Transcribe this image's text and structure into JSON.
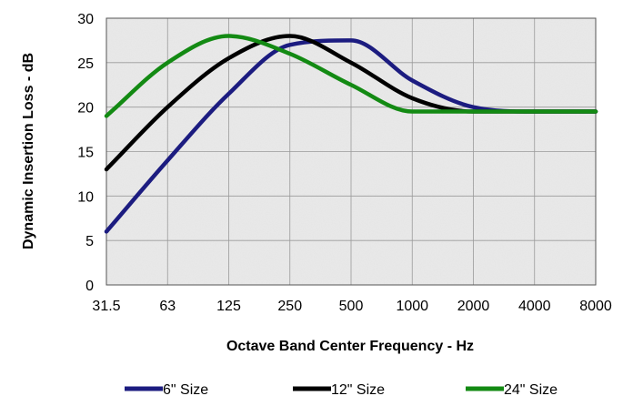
{
  "chart_data": {
    "type": "line",
    "xlabel": "Octave Band Center Frequency - Hz",
    "ylabel": "Dynamic Insertion Loss - dB",
    "categories": [
      "31.5",
      "63",
      "125",
      "250",
      "500",
      "1000",
      "2000",
      "4000",
      "8000"
    ],
    "ylim": [
      0,
      30
    ],
    "yticks": [
      "0",
      "5",
      "10",
      "15",
      "20",
      "25",
      "30"
    ],
    "grid": true,
    "legend_position": "bottom",
    "series": [
      {
        "name": "6\" Size",
        "color": "#1c1c80",
        "values": [
          6,
          14,
          21.5,
          27,
          27.5,
          23,
          20,
          19.5,
          19.5
        ]
      },
      {
        "name": "12\" Size",
        "color": "#000000",
        "values": [
          13,
          20,
          25.5,
          28,
          25,
          21,
          19.5,
          19.5,
          19.5
        ]
      },
      {
        "name": "24\" Size",
        "color": "#138a13",
        "values": [
          19,
          25,
          28,
          26,
          22.5,
          19.5,
          19.5,
          19.5,
          19.5
        ]
      }
    ]
  }
}
